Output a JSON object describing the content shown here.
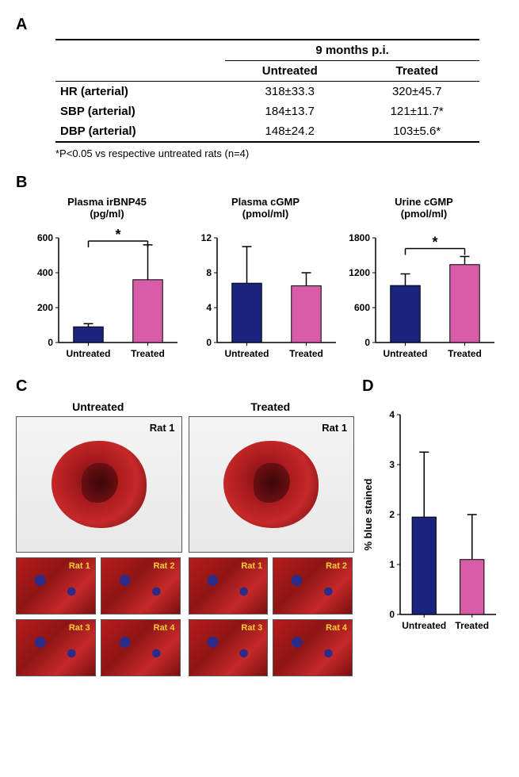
{
  "palette": {
    "untreated": "#1a237e",
    "treated": "#d85ca8",
    "axis": "#000000",
    "bg": "#ffffff"
  },
  "panelA": {
    "label": "A",
    "header_span": "9 months p.i.",
    "columns": [
      "",
      "Untreated",
      "Treated"
    ],
    "rows": [
      [
        "HR (arterial)",
        "318±33.3",
        "320±45.7"
      ],
      [
        "SBP (arterial)",
        "184±13.7",
        "121±11.7*"
      ],
      [
        "DBP (arterial)",
        "148±24.2",
        "103±5.6*"
      ]
    ],
    "footnote": "*P<0.05 vs respective untreated rats (n=4)"
  },
  "panelB": {
    "label": "B",
    "charts": [
      {
        "title": "Plasma irBNP45\n(pg/ml)",
        "ylim": [
          0,
          600
        ],
        "ytick_step": 200,
        "categories": [
          "Untreated",
          "Treated"
        ],
        "values": [
          90,
          360
        ],
        "errors": [
          18,
          200
        ],
        "sig_bracket": true
      },
      {
        "title": "Plasma cGMP\n(pmol/ml)",
        "ylim": [
          0,
          12
        ],
        "ytick_step": 4,
        "categories": [
          "Untreated",
          "Treated"
        ],
        "values": [
          6.8,
          6.5
        ],
        "errors": [
          4.2,
          1.5
        ],
        "sig_bracket": false
      },
      {
        "title": "Urine cGMP\n(pmol/ml)",
        "ylim": [
          0,
          1800
        ],
        "ytick_step": 600,
        "categories": [
          "Untreated",
          "Treated"
        ],
        "values": [
          980,
          1340
        ],
        "errors": [
          200,
          140
        ],
        "sig_bracket": true
      }
    ],
    "bar_width": 0.5,
    "label_fontsize": 12,
    "sig_symbol": "*"
  },
  "panelC": {
    "label": "C",
    "col_titles": [
      "Untreated",
      "Treated"
    ],
    "big_tag": "Rat 1",
    "small_tags": [
      "Rat 1",
      "Rat 2",
      "Rat 3",
      "Rat 4"
    ]
  },
  "panelD": {
    "label": "D",
    "chart": {
      "ylabel": "% blue stained",
      "ylim": [
        0,
        4
      ],
      "ytick_step": 1,
      "categories": [
        "Untreated",
        "Treated"
      ],
      "values": [
        1.95,
        1.1
      ],
      "errors": [
        1.3,
        0.9
      ],
      "sig_bracket": false
    }
  }
}
